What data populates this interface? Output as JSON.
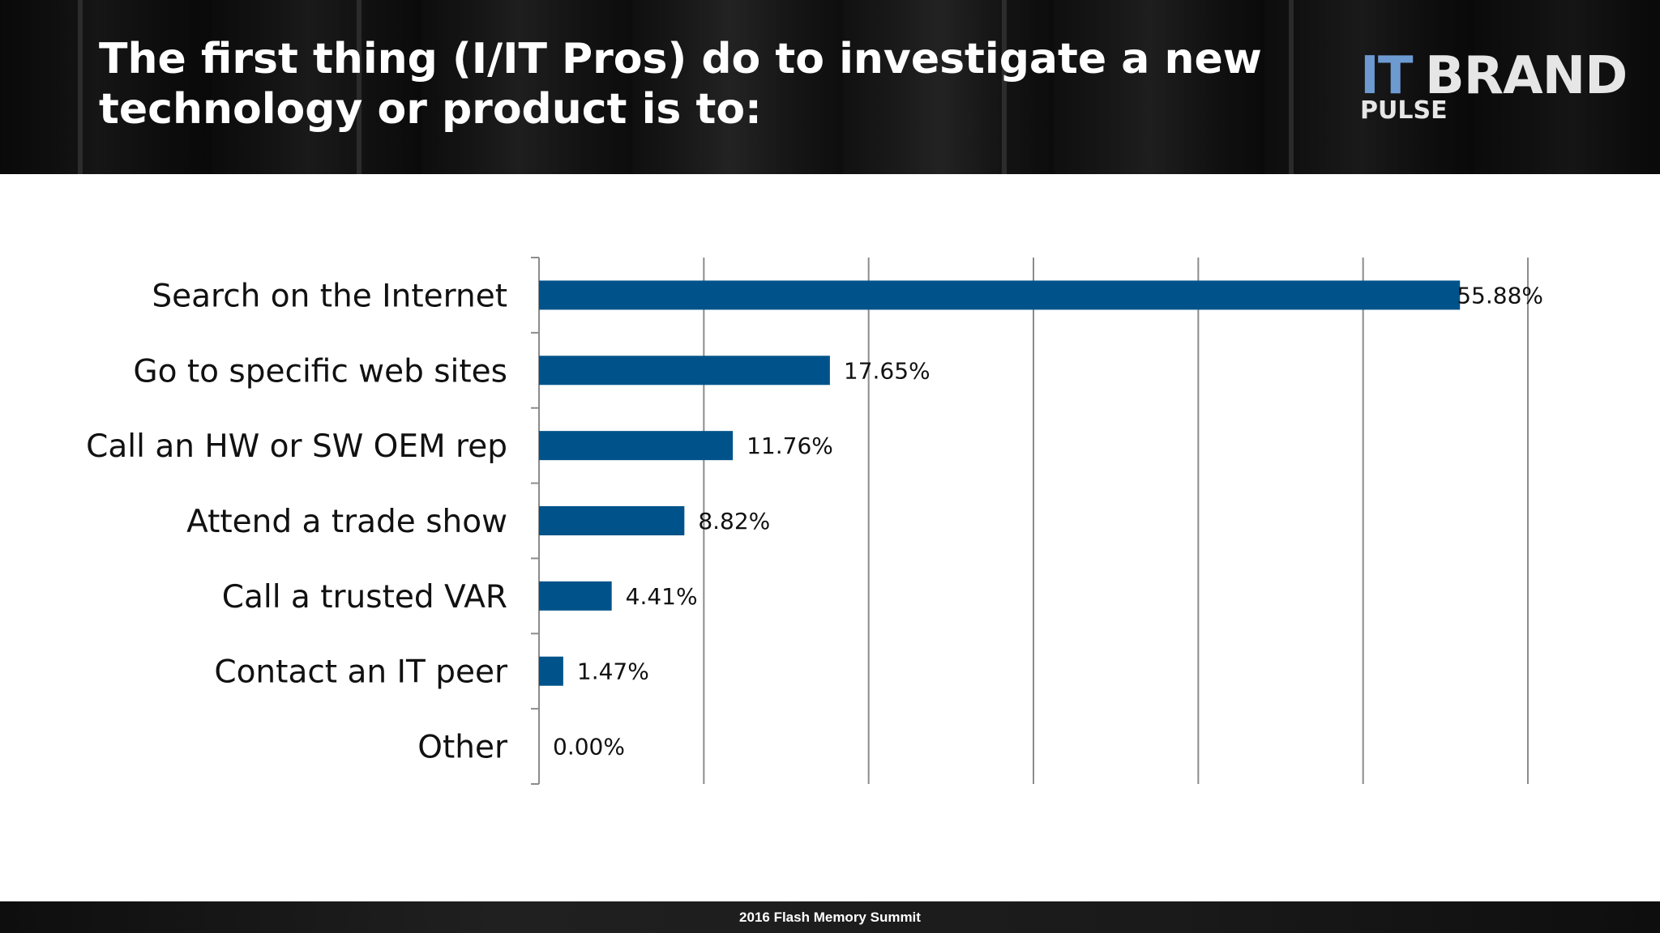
{
  "slide": {
    "title": "The first thing (I/IT Pros) do to investigate a new technology or product is to:",
    "footer": "2016 Flash Memory Summit"
  },
  "logo": {
    "it": "IT",
    "brand": "BRAND",
    "pulse": "PULSE"
  },
  "colors": {
    "bar": "#00538a",
    "gridline": "#8c8c8c",
    "label_text": "#111111",
    "header_bg": "#1a1a1a",
    "logo_it": "#6d9bd1"
  },
  "chart_data": {
    "type": "bar",
    "orientation": "horizontal",
    "categories": [
      "Search on the Internet",
      "Go to specific web sites",
      "Call an HW or SW OEM rep",
      "Attend a trade show",
      "Call a trusted VAR",
      "Contact an IT peer",
      "Other"
    ],
    "values": [
      55.88,
      17.65,
      11.76,
      8.82,
      4.41,
      1.47,
      0.0
    ],
    "data_labels": [
      "55.88%",
      "17.65%",
      "11.76%",
      "8.82%",
      "4.41%",
      "1.47%",
      "0.00%"
    ],
    "title": "",
    "xlabel": "",
    "ylabel": "",
    "xlim": [
      0,
      60
    ],
    "grid": true,
    "legend": "none"
  }
}
